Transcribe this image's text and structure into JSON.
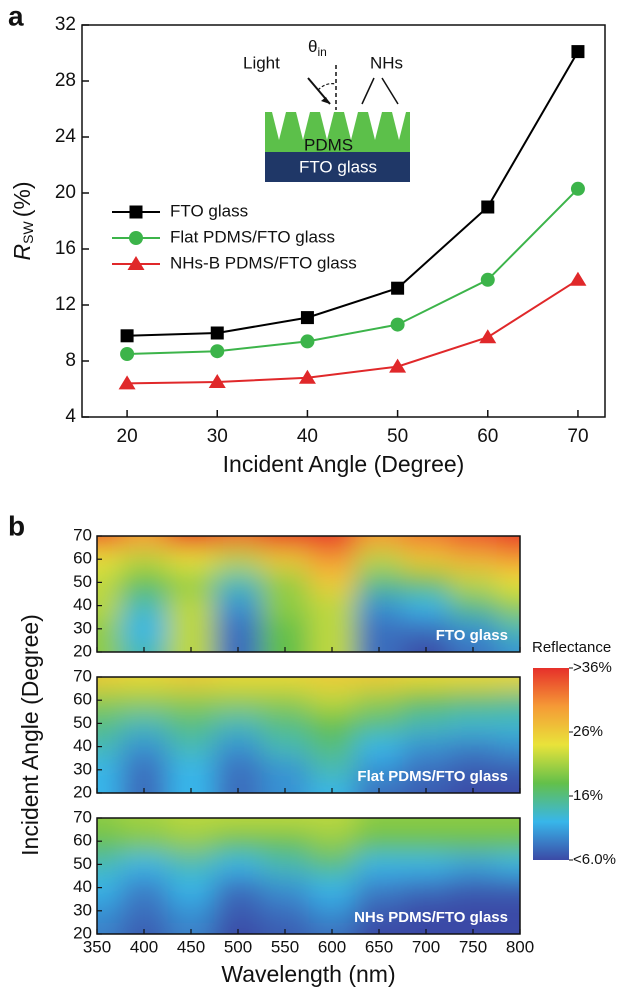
{
  "chart_data": [
    {
      "type": "line",
      "panel_label": "a",
      "xlabel": "Incident Angle (Degree)",
      "ylabel": {
        "main": "R",
        "sub": "SW",
        "unit": "(%)"
      },
      "x": [
        20,
        30,
        40,
        50,
        60,
        70
      ],
      "xlim": [
        15,
        73
      ],
      "xticks": [
        20,
        30,
        40,
        50,
        60,
        70
      ],
      "ylim": [
        4,
        32
      ],
      "yticks": [
        4,
        8,
        12,
        16,
        20,
        24,
        28,
        32
      ],
      "series": [
        {
          "name": "FTO glass",
          "color": "#000000",
          "marker": "square",
          "values": [
            9.8,
            10.0,
            11.1,
            13.2,
            19.0,
            30.1
          ]
        },
        {
          "name": "Flat PDMS/FTO glass",
          "color": "#3cb44a",
          "marker": "circle",
          "values": [
            8.5,
            8.7,
            9.4,
            10.6,
            13.8,
            20.3
          ]
        },
        {
          "name": "NHs-B PDMS/FTO glass",
          "color": "#e0282a",
          "marker": "triangle",
          "values": [
            6.4,
            6.5,
            6.8,
            7.6,
            9.7,
            13.8
          ]
        }
      ],
      "inset": {
        "light": "Light",
        "theta": "θ",
        "theta_sub": "in",
        "nhs": "NHs",
        "pdms": "PDMS",
        "fto": "FTO glass"
      }
    },
    {
      "type": "heatmap",
      "panel_label": "b",
      "xlabel": "Wavelength (nm)",
      "ylabel": "Incident Angle (Degree)",
      "x": [
        350,
        400,
        450,
        500,
        550,
        600,
        650,
        700,
        750,
        800
      ],
      "y": [
        20,
        30,
        40,
        50,
        60,
        70
      ],
      "xlim": [
        350,
        800
      ],
      "xticks": [
        350,
        400,
        450,
        500,
        550,
        600,
        650,
        700,
        750,
        800
      ],
      "ylim": [
        20,
        70
      ],
      "yticks": [
        20,
        30,
        40,
        50,
        60,
        70
      ],
      "panels": [
        {
          "name": "FTO glass",
          "values": [
            [
              20,
              14,
              22,
              8,
              18,
              22,
              8,
              6,
              8,
              10
            ],
            [
              20,
              12,
              22,
              8,
              18,
              22,
              8,
              8,
              10,
              14
            ],
            [
              22,
              14,
              22,
              10,
              20,
              22,
              10,
              12,
              16,
              20
            ],
            [
              22,
              18,
              20,
              14,
              20,
              26,
              16,
              18,
              22,
              24
            ],
            [
              24,
              22,
              24,
              22,
              26,
              30,
              22,
              26,
              28,
              30
            ],
            [
              34,
              30,
              36,
              33,
              36,
              36,
              30,
              32,
              34,
              36
            ]
          ]
        },
        {
          "name": "Flat PDMS/FTO glass",
          "values": [
            [
              12,
              8,
              12,
              8,
              10,
              12,
              8,
              7,
              6,
              6
            ],
            [
              12,
              8,
              12,
              8,
              10,
              14,
              10,
              8,
              7,
              7
            ],
            [
              14,
              10,
              14,
              10,
              14,
              16,
              12,
              10,
              9,
              10
            ],
            [
              16,
              14,
              16,
              14,
              16,
              18,
              16,
              14,
              13,
              13
            ],
            [
              20,
              20,
              20,
              20,
              20,
              22,
              20,
              18,
              17,
              16
            ],
            [
              26,
              25,
              26,
              25,
              25,
              26,
              26,
              25,
              25,
              25
            ]
          ]
        },
        {
          "name": "NHs PDMS/FTO glass",
          "values": [
            [
              9,
              7,
              9,
              6,
              7,
              8,
              6,
              6,
              6,
              6
            ],
            [
              10,
              8,
              10,
              7,
              8,
              10,
              7,
              6,
              6,
              6
            ],
            [
              12,
              9,
              12,
              8,
              10,
              12,
              9,
              8,
              7,
              7
            ],
            [
              14,
              12,
              14,
              12,
              14,
              16,
              12,
              12,
              11,
              12
            ],
            [
              18,
              19,
              20,
              18,
              18,
              20,
              18,
              18,
              18,
              18
            ],
            [
              20,
              21,
              22,
              22,
              22,
              22,
              20,
              20,
              20,
              20
            ]
          ]
        }
      ],
      "colorbar": {
        "title": "Reflectance",
        "lim": [
          6,
          36
        ],
        "ticks": [
          {
            "value": 36,
            "label": ">36%"
          },
          {
            "value": 26,
            "label": "26%"
          },
          {
            "value": 16,
            "label": "16%"
          },
          {
            "value": 6,
            "label": "<6.0%"
          }
        ],
        "colormap": [
          "#3b4aa6",
          "#38b6ea",
          "#63c04a",
          "#e9e33a",
          "#f59a36",
          "#e6302a"
        ]
      }
    }
  ]
}
